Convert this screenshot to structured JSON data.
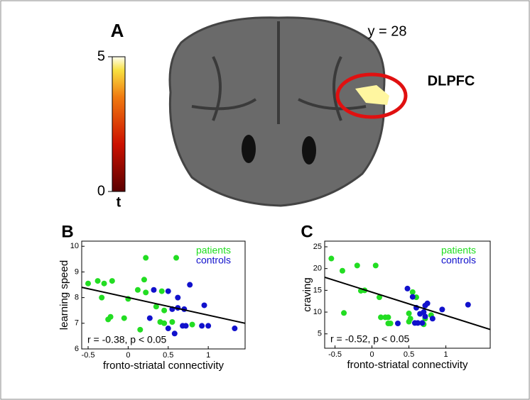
{
  "panel_a": {
    "label": "A",
    "annotation": "y = 28",
    "region": "DLPFC",
    "colorbar": {
      "lim": [
        0,
        5
      ],
      "ticks": [
        0,
        5
      ],
      "label": "t"
    }
  },
  "chart_data": [
    {
      "type": "scatter",
      "panel": "B",
      "xlabel": "fronto-striatal connectivity",
      "ylabel": "learning speed",
      "annotation": "r = -0.38, p < 0.05",
      "xlim": [
        -0.58,
        1.46
      ],
      "ylim": [
        6,
        10.2
      ],
      "xticks": [
        -0.5,
        0,
        0.5,
        1
      ],
      "yticks": [
        6,
        7,
        8,
        9,
        10
      ],
      "series": [
        {
          "name": "patients",
          "color": "#22dd22",
          "x": [
            -0.5,
            -0.38,
            -0.3,
            -0.2,
            -0.33,
            -0.22,
            -0.25,
            -0.05,
            0,
            0.12,
            0.2,
            0.22,
            0.22,
            0.6,
            0.42,
            0.35,
            0.45,
            0.4,
            0.45,
            0.15,
            0.55,
            0.8
          ],
          "values": [
            8.55,
            8.65,
            8.55,
            8.65,
            8.0,
            7.25,
            7.15,
            7.2,
            7.95,
            8.3,
            8.7,
            9.55,
            8.2,
            9.55,
            8.25,
            7.65,
            7.5,
            7.05,
            7.0,
            6.75,
            7.05,
            6.95
          ]
        },
        {
          "name": "controls",
          "color": "#1111cc",
          "x": [
            0.32,
            0.5,
            0.62,
            0.77,
            0.55,
            0.7,
            0.62,
            0.27,
            0.5,
            0.58,
            0.68,
            0.72,
            0.95,
            1.0,
            0.92,
            1.33
          ],
          "values": [
            8.3,
            8.25,
            8.0,
            8.5,
            7.55,
            7.55,
            7.6,
            7.2,
            6.8,
            6.6,
            6.9,
            6.9,
            7.7,
            6.9,
            6.9,
            6.8
          ]
        }
      ],
      "trend_line": {
        "x": [
          -0.58,
          1.46
        ],
        "y": [
          8.4,
          7.0
        ]
      }
    },
    {
      "type": "scatter",
      "panel": "C",
      "xlabel": "fronto-striatal connectivity",
      "ylabel": "craving",
      "annotation": "r = -0.52, p < 0.05",
      "xlim": [
        -0.64,
        1.6
      ],
      "ylim": [
        1.7,
        26.3
      ],
      "xticks": [
        -0.5,
        0,
        0.5,
        1
      ],
      "yticks": [
        5,
        10,
        15,
        20,
        25
      ],
      "series": [
        {
          "name": "patients",
          "color": "#22dd22",
          "x": [
            -0.55,
            -0.4,
            -0.2,
            0.05,
            -0.15,
            -0.1,
            -0.38,
            0.1,
            0.12,
            0.18,
            0.22,
            0.25,
            0.22,
            0.5,
            0.52,
            0.55,
            0.5,
            0.6,
            0.7,
            0.72,
            0.8
          ],
          "values": [
            22.3,
            19.5,
            20.7,
            20.7,
            14.9,
            15.0,
            9.8,
            13.4,
            8.8,
            8.8,
            8.8,
            7.4,
            7.4,
            9.7,
            8.5,
            14.6,
            7.8,
            13.4,
            7.2,
            8.5,
            9.3
          ]
        },
        {
          "name": "controls",
          "color": "#1111cc",
          "x": [
            0.48,
            0.55,
            0.6,
            0.65,
            0.7,
            0.72,
            0.75,
            0.82,
            0.58,
            0.62,
            0.68,
            0.72,
            0.95,
            1.3,
            0.35
          ],
          "values": [
            15.4,
            13.5,
            11.0,
            9.6,
            10.0,
            11.5,
            12.0,
            8.5,
            7.5,
            7.5,
            7.5,
            9.0,
            10.6,
            11.7,
            7.4
          ]
        }
      ],
      "trend_line": {
        "x": [
          -0.64,
          1.6
        ],
        "y": [
          18,
          6
        ]
      }
    }
  ]
}
